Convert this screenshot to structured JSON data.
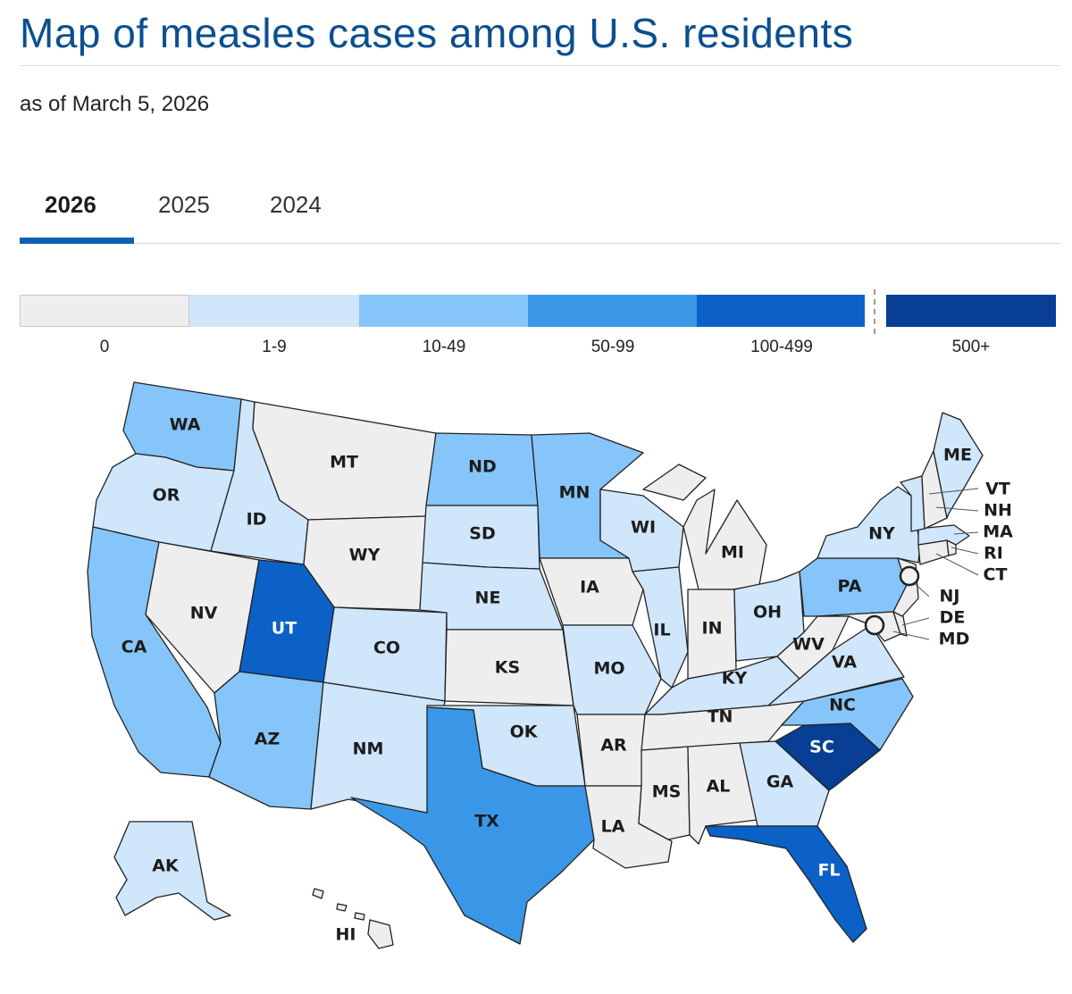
{
  "header": {
    "title": "Map of measles cases among U.S. residents",
    "subtitle": "as of March 5, 2026"
  },
  "tabs": [
    {
      "label": "2026",
      "active": true
    },
    {
      "label": "2025",
      "active": false
    },
    {
      "label": "2024",
      "active": false
    }
  ],
  "legend": [
    {
      "label": "0",
      "color": "#eeeeee"
    },
    {
      "label": "1-9",
      "color": "#cfe6fb"
    },
    {
      "label": "10-49",
      "color": "#86c5f9"
    },
    {
      "label": "50-99",
      "color": "#3a97e8"
    },
    {
      "label": "100-499",
      "color": "#0b61c6"
    },
    {
      "label": "500+",
      "color": "#083f94"
    }
  ],
  "states": {
    "WA": {
      "label": "WA",
      "category": "10-49"
    },
    "OR": {
      "label": "OR",
      "category": "1-9"
    },
    "CA": {
      "label": "CA",
      "category": "10-49"
    },
    "ID": {
      "label": "ID",
      "category": "1-9"
    },
    "NV": {
      "label": "NV",
      "category": "0"
    },
    "MT": {
      "label": "MT",
      "category": "0"
    },
    "WY": {
      "label": "WY",
      "category": "0"
    },
    "UT": {
      "label": "UT",
      "category": "100-499"
    },
    "AZ": {
      "label": "AZ",
      "category": "10-49"
    },
    "CO": {
      "label": "CO",
      "category": "1-9"
    },
    "NM": {
      "label": "NM",
      "category": "1-9"
    },
    "ND": {
      "label": "ND",
      "category": "10-49"
    },
    "SD": {
      "label": "SD",
      "category": "1-9"
    },
    "NE": {
      "label": "NE",
      "category": "1-9"
    },
    "KS": {
      "label": "KS",
      "category": "0"
    },
    "OK": {
      "label": "OK",
      "category": "1-9"
    },
    "TX": {
      "label": "TX",
      "category": "50-99"
    },
    "MN": {
      "label": "MN",
      "category": "10-49"
    },
    "IA": {
      "label": "IA",
      "category": "0"
    },
    "MO": {
      "label": "MO",
      "category": "1-9"
    },
    "AR": {
      "label": "AR",
      "category": "0"
    },
    "LA": {
      "label": "LA",
      "category": "0"
    },
    "WI": {
      "label": "WI",
      "category": "1-9"
    },
    "IL": {
      "label": "IL",
      "category": "1-9"
    },
    "MI": {
      "label": "MI",
      "category": "0"
    },
    "IN": {
      "label": "IN",
      "category": "0"
    },
    "OH": {
      "label": "OH",
      "category": "1-9"
    },
    "KY": {
      "label": "KY",
      "category": "1-9"
    },
    "TN": {
      "label": "TN",
      "category": "0"
    },
    "MS": {
      "label": "MS",
      "category": "0"
    },
    "AL": {
      "label": "AL",
      "category": "0"
    },
    "GA": {
      "label": "GA",
      "category": "1-9"
    },
    "FL": {
      "label": "FL",
      "category": "100-499"
    },
    "SC": {
      "label": "SC",
      "category": "500+"
    },
    "NC": {
      "label": "NC",
      "category": "10-49"
    },
    "VA": {
      "label": "VA",
      "category": "1-9"
    },
    "WV": {
      "label": "WV",
      "category": "0"
    },
    "PA": {
      "label": "PA",
      "category": "10-49"
    },
    "NY": {
      "label": "NY",
      "category": "1-9"
    },
    "ME": {
      "label": "ME",
      "category": "1-9"
    },
    "VT": {
      "label": "VT",
      "category": "1-9"
    },
    "NH": {
      "label": "NH",
      "category": "0"
    },
    "MA": {
      "label": "MA",
      "category": "1-9"
    },
    "RI": {
      "label": "RI",
      "category": "0"
    },
    "CT": {
      "label": "CT",
      "category": "0"
    },
    "NJ": {
      "label": "NJ",
      "category": "0"
    },
    "DE": {
      "label": "DE",
      "category": "0"
    },
    "MD": {
      "label": "MD",
      "category": "0"
    },
    "AK": {
      "label": "AK",
      "category": "1-9"
    },
    "HI": {
      "label": "HI",
      "category": "0"
    }
  }
}
